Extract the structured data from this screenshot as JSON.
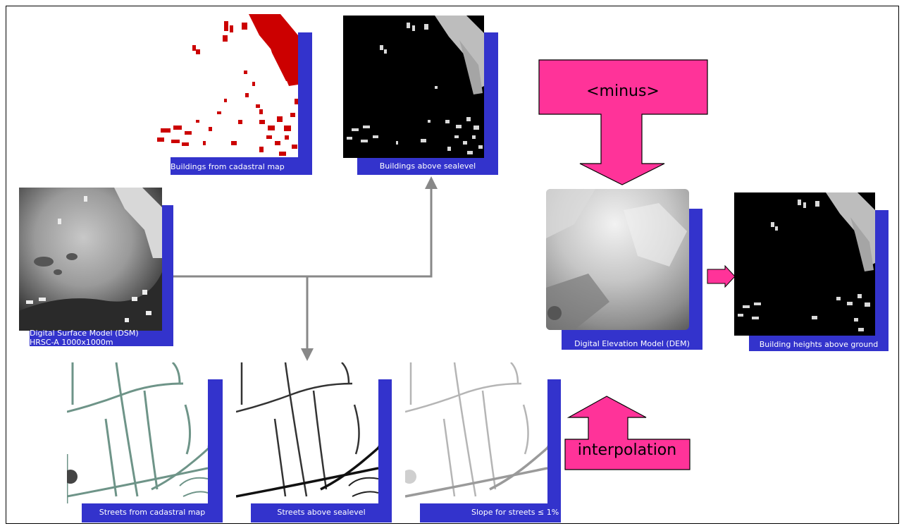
{
  "colors": {
    "caption_band": "#3333cc",
    "pink_arrow": "#ff3399",
    "connector": "#888888",
    "building_red": "#cc0000",
    "street_green": "#6e9488"
  },
  "panels": {
    "dsm": {
      "caption_line1": "Digital Surface Model (DSM)",
      "caption_line2": "HRSC-A 1000x1000m"
    },
    "buildings_cadastral": {
      "caption": "Buildings from cadastral map"
    },
    "buildings_sealevel": {
      "caption": "Buildings above sealevel"
    },
    "dem": {
      "caption": "Digital Elevation Model (DEM)"
    },
    "building_heights": {
      "caption": "Building heights above ground"
    },
    "streets_cadastral": {
      "caption": "Streets from cadastral map"
    },
    "streets_sealevel": {
      "caption": "Streets above sealevel"
    },
    "slope_streets": {
      "caption": "Slope for streets ≤ 1%"
    }
  },
  "operations": {
    "minus": "<minus>",
    "interpolation": "interpolation"
  }
}
